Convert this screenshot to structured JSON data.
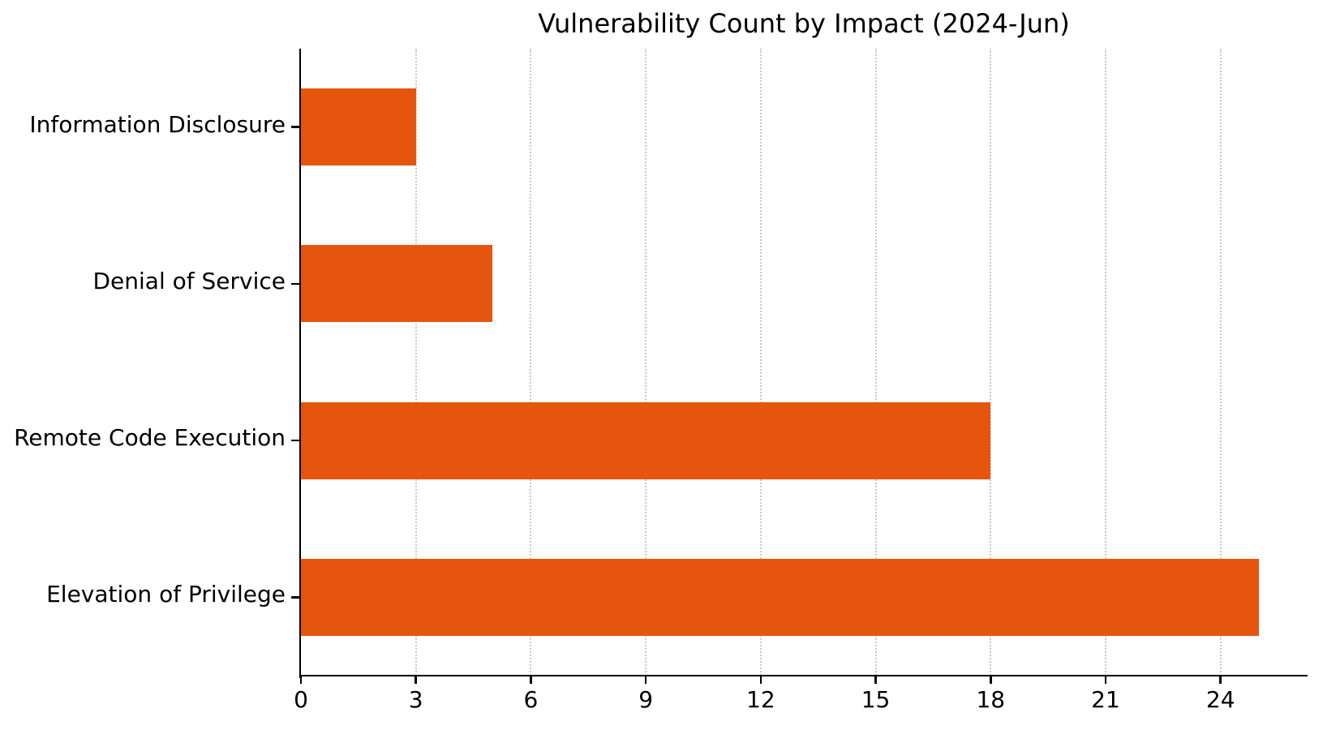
{
  "chart_data": {
    "type": "bar",
    "orientation": "horizontal",
    "title": "Vulnerability Count by Impact (2024-Jun)",
    "categories": [
      "Information Disclosure",
      "Denial of Service",
      "Remote Code Execution",
      "Elevation of Privilege"
    ],
    "values": [
      3,
      5,
      18,
      25
    ],
    "xlabel": "",
    "ylabel": "",
    "xlim": [
      0,
      26.25
    ],
    "xticks": [
      0,
      3,
      6,
      9,
      12,
      15,
      18,
      21,
      24
    ],
    "grid": "vertical-dotted",
    "legend": "none",
    "bar_color": "#e6550d",
    "background_color": "#ffffff",
    "text_color": "#000000",
    "grid_color": "#c9c9c9",
    "spine_color": "#000000"
  }
}
